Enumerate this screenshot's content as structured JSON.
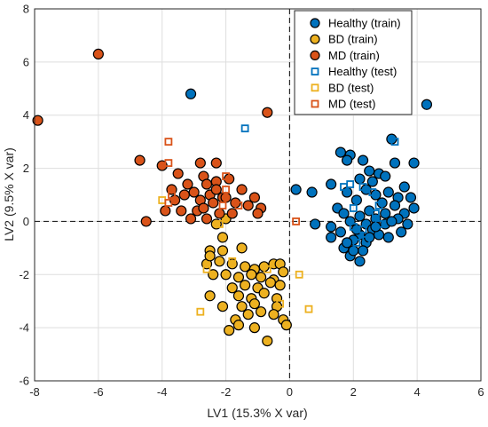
{
  "chart_data": {
    "type": "scatter",
    "title": "",
    "xlabel": "LV1 (15.3% X var)",
    "ylabel": "LV2 (9.5% X var)",
    "xlim": [
      -8,
      6
    ],
    "ylim": [
      -6,
      8
    ],
    "xticks": [
      -8,
      -6,
      -4,
      -2,
      0,
      2,
      4,
      6
    ],
    "yticks": [
      -6,
      -4,
      -2,
      0,
      2,
      4,
      6,
      8
    ],
    "grid": true,
    "reference_lines": {
      "x": 0,
      "y": 0,
      "style": "dashed"
    },
    "legend_position": "top-right",
    "series": [
      {
        "name": "Healthy (train)",
        "marker": "circle",
        "color": "#0072BD",
        "points": [
          [
            -3.1,
            4.8
          ],
          [
            4.3,
            4.4
          ],
          [
            3.2,
            3.1
          ],
          [
            1.6,
            2.6
          ],
          [
            1.9,
            2.5
          ],
          [
            2.3,
            2.3
          ],
          [
            1.8,
            2.3
          ],
          [
            3.3,
            2.2
          ],
          [
            3.9,
            2.2
          ],
          [
            2.5,
            1.9
          ],
          [
            2.8,
            1.8
          ],
          [
            3.0,
            1.7
          ],
          [
            2.2,
            1.6
          ],
          [
            2.6,
            1.5
          ],
          [
            1.3,
            1.4
          ],
          [
            3.6,
            1.3
          ],
          [
            2.4,
            1.2
          ],
          [
            1.8,
            1.1
          ],
          [
            3.1,
            1.1
          ],
          [
            0.2,
            1.2
          ],
          [
            0.7,
            1.1
          ],
          [
            2.7,
            1.0
          ],
          [
            3.4,
            0.9
          ],
          [
            3.8,
            0.9
          ],
          [
            2.1,
            0.8
          ],
          [
            2.9,
            0.7
          ],
          [
            3.3,
            0.6
          ],
          [
            3.9,
            0.5
          ],
          [
            1.5,
            0.5
          ],
          [
            2.5,
            0.4
          ],
          [
            3.0,
            0.3
          ],
          [
            3.6,
            0.3
          ],
          [
            2.2,
            0.2
          ],
          [
            2.7,
            0.1
          ],
          [
            3.4,
            0.1
          ],
          [
            1.9,
            0.0
          ],
          [
            2.4,
            -0.1
          ],
          [
            3.0,
            -0.1
          ],
          [
            3.7,
            -0.1
          ],
          [
            1.3,
            -0.2
          ],
          [
            2.6,
            -0.3
          ],
          [
            0.8,
            -0.1
          ],
          [
            1.6,
            -0.4
          ],
          [
            2.2,
            -0.5
          ],
          [
            2.8,
            -0.5
          ],
          [
            1.3,
            -0.6
          ],
          [
            2.0,
            -0.7
          ],
          [
            2.4,
            -0.8
          ],
          [
            3.1,
            -0.6
          ],
          [
            3.5,
            -0.4
          ],
          [
            1.7,
            -1.0
          ],
          [
            2.3,
            -1.1
          ],
          [
            1.9,
            -1.3
          ],
          [
            2.2,
            -1.5
          ],
          [
            1.8,
            -0.8
          ],
          [
            2.0,
            -1.1
          ],
          [
            2.5,
            -0.6
          ],
          [
            2.7,
            -0.2
          ],
          [
            3.2,
            0.0
          ],
          [
            2.1,
            -0.3
          ],
          [
            1.7,
            0.3
          ]
        ]
      },
      {
        "name": "BD (train)",
        "marker": "circle",
        "color": "#EDB120",
        "points": [
          [
            -2.5,
            -1.1
          ],
          [
            -2.1,
            -1.1
          ],
          [
            -1.5,
            -1.0
          ],
          [
            -2.6,
            -1.6
          ],
          [
            -2.2,
            -1.5
          ],
          [
            -1.8,
            -1.6
          ],
          [
            -1.4,
            -1.7
          ],
          [
            -1.1,
            -1.8
          ],
          [
            -0.8,
            -1.7
          ],
          [
            -0.5,
            -1.6
          ],
          [
            -0.3,
            -1.6
          ],
          [
            -2.4,
            -2.0
          ],
          [
            -2.0,
            -2.0
          ],
          [
            -1.6,
            -2.1
          ],
          [
            -1.2,
            -2.0
          ],
          [
            -0.9,
            -2.1
          ],
          [
            -0.5,
            -2.2
          ],
          [
            -0.2,
            -1.9
          ],
          [
            -1.4,
            -2.4
          ],
          [
            -1.0,
            -2.5
          ],
          [
            -0.6,
            -2.3
          ],
          [
            -0.3,
            -2.4
          ],
          [
            -1.8,
            -2.5
          ],
          [
            -2.5,
            -2.8
          ],
          [
            -1.6,
            -2.8
          ],
          [
            -1.2,
            -2.9
          ],
          [
            -0.8,
            -2.7
          ],
          [
            -0.4,
            -2.9
          ],
          [
            -2.1,
            -3.2
          ],
          [
            -1.5,
            -3.2
          ],
          [
            -1.1,
            -3.1
          ],
          [
            -0.4,
            -3.2
          ],
          [
            -1.7,
            -3.7
          ],
          [
            -1.3,
            -3.5
          ],
          [
            -0.9,
            -3.4
          ],
          [
            -0.5,
            -3.5
          ],
          [
            -0.2,
            -3.7
          ],
          [
            -0.1,
            -3.9
          ],
          [
            -1.6,
            -3.9
          ],
          [
            -1.9,
            -4.1
          ],
          [
            -0.7,
            -4.5
          ],
          [
            -1.1,
            -4.0
          ],
          [
            -2.0,
            0.1
          ],
          [
            -2.3,
            -0.1
          ],
          [
            -2.1,
            -0.6
          ],
          [
            -2.5,
            -1.3
          ]
        ]
      },
      {
        "name": "MD (train)",
        "marker": "circle",
        "color": "#D95319",
        "points": [
          [
            -7.9,
            3.8
          ],
          [
            -6.0,
            6.3
          ],
          [
            -0.7,
            4.1
          ],
          [
            -4.7,
            2.3
          ],
          [
            -4.0,
            2.1
          ],
          [
            -2.8,
            2.2
          ],
          [
            -2.3,
            2.2
          ],
          [
            -3.5,
            1.8
          ],
          [
            -2.7,
            1.7
          ],
          [
            -1.9,
            1.6
          ],
          [
            -2.3,
            1.5
          ],
          [
            -3.2,
            1.4
          ],
          [
            -2.6,
            1.4
          ],
          [
            -1.5,
            1.2
          ],
          [
            -3.7,
            1.2
          ],
          [
            -3.3,
            1.0
          ],
          [
            -3.0,
            1.1
          ],
          [
            -2.5,
            1.0
          ],
          [
            -2.1,
            0.9
          ],
          [
            -1.1,
            0.9
          ],
          [
            -3.6,
            0.8
          ],
          [
            -2.8,
            0.8
          ],
          [
            -2.4,
            0.7
          ],
          [
            -1.7,
            0.7
          ],
          [
            -1.3,
            0.6
          ],
          [
            -0.9,
            0.5
          ],
          [
            -3.9,
            0.4
          ],
          [
            -3.4,
            0.4
          ],
          [
            -2.9,
            0.4
          ],
          [
            -2.2,
            0.3
          ],
          [
            -1.8,
            0.3
          ],
          [
            -1.0,
            0.3
          ],
          [
            -4.5,
            0.0
          ],
          [
            -3.1,
            0.1
          ],
          [
            -2.6,
            0.1
          ],
          [
            -2.0,
            0.9
          ],
          [
            -2.7,
            0.5
          ],
          [
            -2.3,
            1.2
          ]
        ]
      },
      {
        "name": "Healthy (test)",
        "marker": "square",
        "color": "#0072BD",
        "points": [
          [
            -1.4,
            3.5
          ],
          [
            3.3,
            3.0
          ],
          [
            1.9,
            1.4
          ],
          [
            1.7,
            1.3
          ],
          [
            2.6,
            1.1
          ],
          [
            2.3,
            1.3
          ],
          [
            2.8,
            0.6
          ],
          [
            2.0,
            0.5
          ],
          [
            2.7,
            0.3
          ],
          [
            2.3,
            -0.3
          ],
          [
            2.0,
            -0.2
          ],
          [
            2.8,
            -0.1
          ],
          [
            2.4,
            -0.7
          ],
          [
            2.1,
            -0.8
          ]
        ]
      },
      {
        "name": "BD (test)",
        "marker": "square",
        "color": "#EDB120",
        "points": [
          [
            -4.0,
            0.8
          ],
          [
            -2.2,
            -0.1
          ],
          [
            -1.8,
            -1.5
          ],
          [
            -2.6,
            -1.8
          ],
          [
            -0.7,
            -1.8
          ],
          [
            0.3,
            -2.0
          ],
          [
            -0.3,
            -3.1
          ],
          [
            0.6,
            -3.3
          ],
          [
            -2.8,
            -3.4
          ]
        ]
      },
      {
        "name": "MD (test)",
        "marker": "square",
        "color": "#D95319",
        "points": [
          [
            -3.8,
            3.0
          ],
          [
            -3.8,
            2.2
          ],
          [
            -3.8,
            0.7
          ],
          [
            -3.7,
            1.0
          ],
          [
            -2.0,
            1.7
          ],
          [
            -2.0,
            1.2
          ],
          [
            -2.1,
            0.6
          ],
          [
            -1.6,
            0.6
          ],
          [
            0.2,
            0.0
          ]
        ]
      }
    ]
  }
}
